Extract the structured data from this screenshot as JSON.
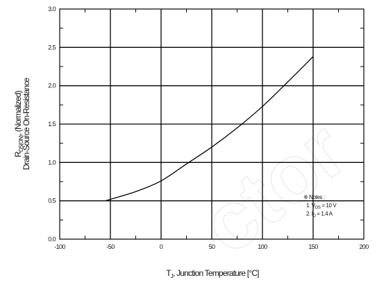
{
  "chart_data": {
    "type": "line",
    "title": "",
    "xlabel": {
      "main": "T",
      "sub": "J",
      "rest": ", Junction Temperature [°C]"
    },
    "ylabel": {
      "line1_main": "R",
      "line1_sub": "DS(ON)",
      "line1_rest": ", (Normalized)",
      "line2": "Drain-Source On-Resistance"
    },
    "xlim": [
      -100,
      200
    ],
    "ylim": [
      0.0,
      3.0
    ],
    "xticks": [
      -100,
      -50,
      0,
      50,
      100,
      150,
      200
    ],
    "yticks": [
      "0.0",
      "0.5",
      "1.0",
      "1.5",
      "2.0",
      "2.5",
      "3.0"
    ],
    "grid": true,
    "series": [
      {
        "name": "",
        "x": [
          -55,
          -25,
          0,
          25,
          50,
          75,
          100,
          125,
          150
        ],
        "y": [
          0.5,
          0.62,
          0.76,
          0.98,
          1.2,
          1.45,
          1.73,
          2.05,
          2.38
        ]
      }
    ],
    "notes": {
      "title": "※ Notes :",
      "line1": {
        "prefix": "1. V",
        "sub": "GS",
        "suffix": " = 10 V"
      },
      "line2": {
        "prefix": "2. I",
        "sub": "D",
        "suffix": " = 1.4 A"
      }
    }
  },
  "watermark": {
    "text": "ctor"
  },
  "colors": {
    "grid": "#000000",
    "line": "#000000",
    "watermark": "#e9e9e9"
  }
}
